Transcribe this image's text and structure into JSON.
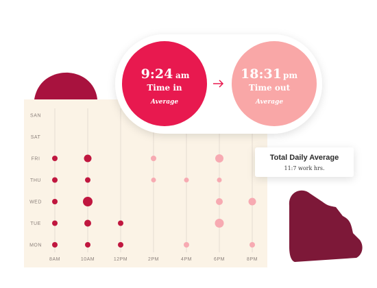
{
  "chart_data": {
    "type": "dot-grid",
    "x": [
      "8AM",
      "10AM",
      "12PM",
      "2PM",
      "4PM",
      "6PM",
      "8PM"
    ],
    "categories": [
      "SAN",
      "SAT",
      "FRI",
      "THU",
      "WED",
      "TUE",
      "MON"
    ],
    "column_colors": [
      "#c0173f",
      "#c0173f",
      "#c0173f",
      "#f7aab2",
      "#f7aab2",
      "#f7aab2",
      "#f7aab2"
    ],
    "values": [
      [
        null,
        null,
        null,
        null,
        null,
        null,
        null
      ],
      [
        null,
        null,
        null,
        null,
        null,
        null,
        null
      ],
      [
        4,
        5.5,
        null,
        4,
        null,
        6,
        null
      ],
      [
        4,
        4,
        null,
        3.5,
        3.5,
        3.5,
        null
      ],
      [
        4,
        7,
        null,
        null,
        null,
        5,
        5.5
      ],
      [
        4,
        5,
        4,
        null,
        null,
        6.5,
        null
      ],
      [
        4,
        4,
        4,
        null,
        4,
        null,
        4
      ]
    ]
  },
  "time_in": {
    "time": "9:24",
    "suffix": "am",
    "label": "Time in",
    "note": "Average"
  },
  "time_out": {
    "time": "18:31",
    "suffix": "pm",
    "label": "Time out",
    "note": "Average"
  },
  "daily": {
    "title": "Total Daily Average",
    "value": "11:7 work hrs."
  }
}
